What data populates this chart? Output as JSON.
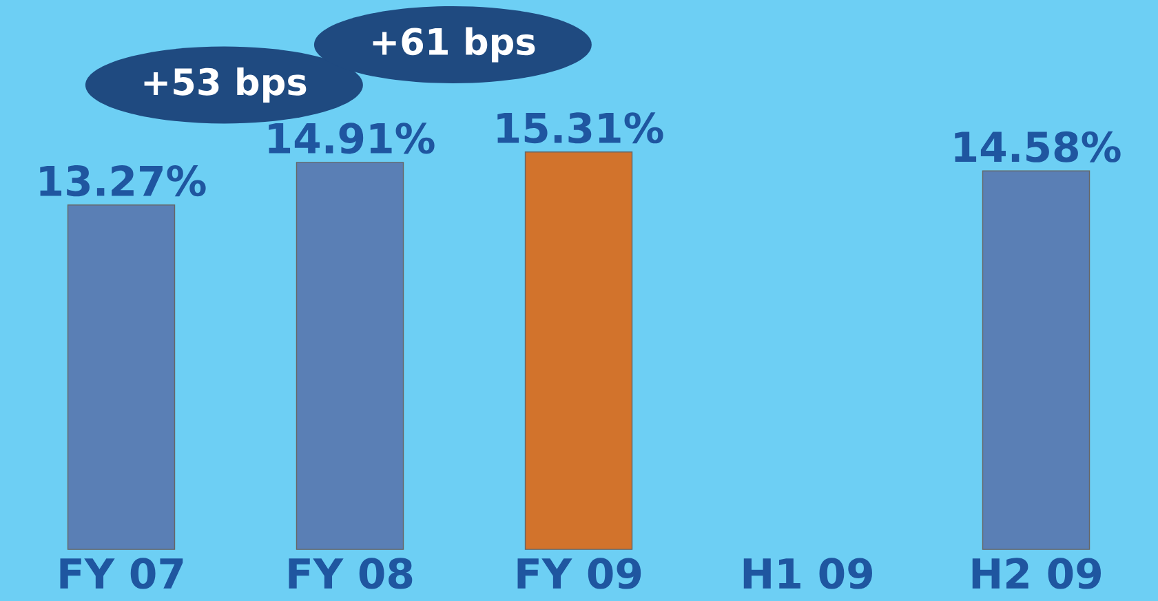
{
  "chart_data": {
    "type": "bar",
    "categories": [
      "FY 07",
      "FY 08",
      "FY 09",
      "H1 09",
      "H2 09"
    ],
    "values": [
      13.27,
      14.91,
      15.31,
      null,
      14.58
    ],
    "value_labels": [
      "13.27%",
      "14.91%",
      "15.31%",
      null,
      "14.58%"
    ],
    "tick_labels": "x",
    "colors": [
      "#5a7fb5",
      "#5a7fb5",
      "#d2732c",
      "#5a7fb5",
      "#5a7fb5"
    ],
    "annotations": [
      "+53 bps",
      "+61 bps"
    ]
  }
}
